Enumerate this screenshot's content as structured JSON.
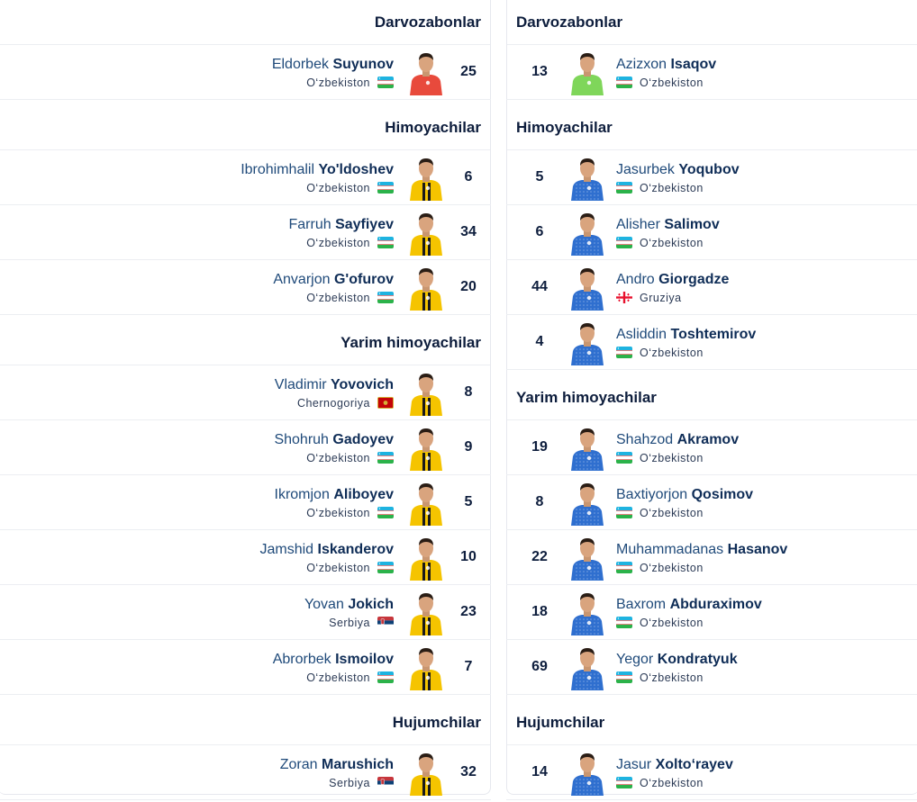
{
  "left": {
    "sections": [
      {
        "title": "Darvozabonlar",
        "players": [
          {
            "first": "Eldorbek",
            "last": "Suyunov",
            "country": "O‘zbekiston",
            "flag": "uz",
            "number": "25",
            "kit": "gk-red"
          }
        ]
      },
      {
        "title": "Himoyachilar",
        "players": [
          {
            "first": "Ibrohimhalil",
            "last": "Yo'ldoshev",
            "country": "O‘zbekiston",
            "flag": "uz",
            "number": "6",
            "kit": "yellow"
          },
          {
            "first": "Farruh",
            "last": "Sayfiyev",
            "country": "O‘zbekiston",
            "flag": "uz",
            "number": "34",
            "kit": "yellow"
          },
          {
            "first": "Anvarjon",
            "last": "G'ofurov",
            "country": "O‘zbekiston",
            "flag": "uz",
            "number": "20",
            "kit": "yellow"
          }
        ]
      },
      {
        "title": "Yarim himoyachilar",
        "players": [
          {
            "first": "Vladimir",
            "last": "Yovovich",
            "country": "Chernogoriya",
            "flag": "me",
            "number": "8",
            "kit": "yellow"
          },
          {
            "first": "Shohruh",
            "last": "Gadoyev",
            "country": "O‘zbekiston",
            "flag": "uz",
            "number": "9",
            "kit": "yellow"
          },
          {
            "first": "Ikromjon",
            "last": "Aliboyev",
            "country": "O‘zbekiston",
            "flag": "uz",
            "number": "5",
            "kit": "yellow"
          },
          {
            "first": "Jamshid",
            "last": "Iskanderov",
            "country": "O‘zbekiston",
            "flag": "uz",
            "number": "10",
            "kit": "yellow"
          },
          {
            "first": "Yovan",
            "last": "Jokich",
            "country": "Serbiya",
            "flag": "rs",
            "number": "23",
            "kit": "yellow"
          },
          {
            "first": "Abrorbek",
            "last": "Ismoilov",
            "country": "O‘zbekiston",
            "flag": "uz",
            "number": "7",
            "kit": "yellow"
          }
        ]
      },
      {
        "title": "Hujumchilar",
        "players": [
          {
            "first": "Zoran",
            "last": "Marushich",
            "country": "Serbiya",
            "flag": "rs",
            "number": "32",
            "kit": "yellow"
          }
        ]
      }
    ]
  },
  "right": {
    "sections": [
      {
        "title": "Darvozabonlar",
        "players": [
          {
            "first": "Azizxon",
            "last": "Isaqov",
            "country": "O‘zbekiston",
            "flag": "uz",
            "number": "13",
            "kit": "gk-green"
          }
        ]
      },
      {
        "title": "Himoyachilar",
        "players": [
          {
            "first": "Jasurbek",
            "last": "Yoqubov",
            "country": "O‘zbekiston",
            "flag": "uz",
            "number": "5",
            "kit": "blue"
          },
          {
            "first": "Alisher",
            "last": "Salimov",
            "country": "O‘zbekiston",
            "flag": "uz",
            "number": "6",
            "kit": "blue"
          },
          {
            "first": "Andro",
            "last": "Giorgadze",
            "country": "Gruziya",
            "flag": "ge",
            "number": "44",
            "kit": "blue"
          },
          {
            "first": "Asliddin",
            "last": "Toshtemirov",
            "country": "O‘zbekiston",
            "flag": "uz",
            "number": "4",
            "kit": "blue"
          }
        ]
      },
      {
        "title": "Yarim himoyachilar",
        "players": [
          {
            "first": "Shahzod",
            "last": "Akramov",
            "country": "O‘zbekiston",
            "flag": "uz",
            "number": "19",
            "kit": "blue"
          },
          {
            "first": "Baxtiyorjon",
            "last": "Qosimov",
            "country": "O‘zbekiston",
            "flag": "uz",
            "number": "8",
            "kit": "blue"
          },
          {
            "first": "Muhammadanas",
            "last": "Hasanov",
            "country": "O‘zbekiston",
            "flag": "uz",
            "number": "22",
            "kit": "blue"
          },
          {
            "first": "Baxrom",
            "last": "Abduraximov",
            "country": "O‘zbekiston",
            "flag": "uz",
            "number": "18",
            "kit": "blue"
          },
          {
            "first": "Yegor",
            "last": "Kondratyuk",
            "country": "O‘zbekiston",
            "flag": "uz",
            "number": "69",
            "kit": "blue"
          }
        ]
      },
      {
        "title": "Hujumchilar",
        "players": [
          {
            "first": "Jasur",
            "last": "Xolto‘rayev",
            "country": "O‘zbekiston",
            "flag": "uz",
            "number": "14",
            "kit": "blue"
          }
        ]
      }
    ]
  },
  "colors": {
    "yellow": "#f5c400",
    "blue": "#2f6fcf",
    "gk-red": "#e84a3c",
    "gk-green": "#7fd65a",
    "name": "#1f4a7a",
    "heading": "#0e1e3d"
  }
}
